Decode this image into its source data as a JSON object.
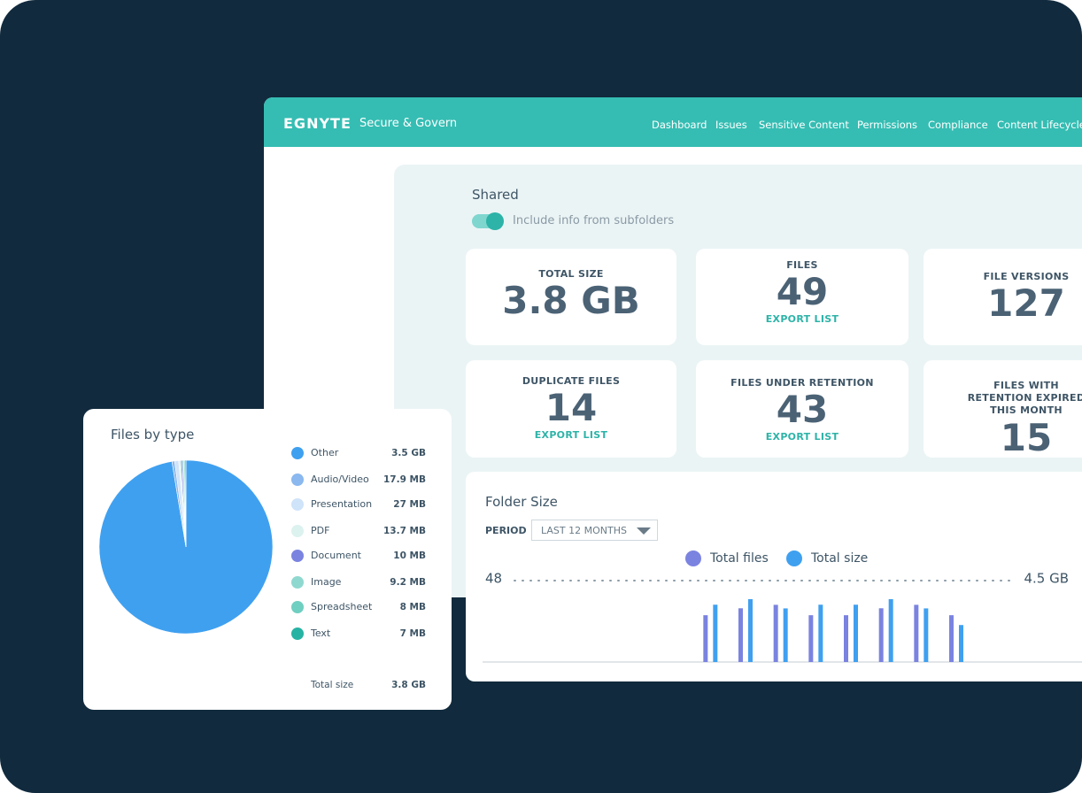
{
  "header": {
    "logo": "EGNYTE",
    "product": "Secure & Govern",
    "nav": [
      "Dashboard",
      "Issues",
      "Sensitive Content",
      "Permissions",
      "Compliance",
      "Content Lifecycle"
    ]
  },
  "panel": {
    "title": "Shared",
    "toggle_label": "Include info from subfolders"
  },
  "stats": [
    {
      "label": "TOTAL SIZE",
      "value": "3.8 GB"
    },
    {
      "label": "FILES",
      "value": 49,
      "link": "EXPORT LIST"
    },
    {
      "label": "FILE VERSIONS",
      "value": 127
    },
    {
      "label": "DUPLICATE FILES",
      "value": 14,
      "link": "EXPORT LIST"
    },
    {
      "label": "FILES UNDER RETENTION",
      "value": 43,
      "link": "EXPORT LIST"
    },
    {
      "label": "FILES WITH RETENTION EXPIRED THIS MONTH",
      "value": 15
    }
  ],
  "chart_data": [
    {
      "type": "pie",
      "title": "Files by type",
      "categories": [
        "Other",
        "Audio/Video",
        "Presentation",
        "PDF",
        "Document",
        "Image",
        "Spreadsheet",
        "Text"
      ],
      "values": [
        3500,
        17.9,
        27,
        13.7,
        10,
        9.2,
        8,
        7
      ],
      "value_labels": [
        "3.5 GB",
        "17.9 MB",
        "27 MB",
        "13.7 MB",
        "10 MB",
        "9.2 MB",
        "8 MB",
        "7 MB"
      ],
      "colors": [
        "#3fa0f0",
        "#8ab8ef",
        "#cfe3f9",
        "#dcf2ef",
        "#7b83e0",
        "#8fd8d0",
        "#6fcfc0",
        "#26b3a3"
      ],
      "total_label": "Total size",
      "total": "3.8 GB"
    },
    {
      "type": "bar",
      "title": "Folder Size",
      "period_label": "PERIOD",
      "period": "LAST 12 MONTHS",
      "categories": [
        null,
        null,
        null,
        null,
        null,
        null,
        null,
        null,
        null,
        null,
        null,
        null,
        null,
        null,
        null
      ],
      "series": [
        {
          "name": "Total files",
          "color": "#7b83e0",
          "values": [
            null,
            null,
            null,
            null,
            null,
            null,
            27,
            31,
            33,
            27,
            27,
            31,
            33,
            27,
            null
          ]
        },
        {
          "name": "Total size",
          "color": "#3fa0f0",
          "axis": "y2",
          "values": [
            null,
            null,
            null,
            null,
            null,
            null,
            3.1,
            3.4,
            2.9,
            3.1,
            3.1,
            3.4,
            2.9,
            2.0,
            null
          ]
        }
      ],
      "ylim": [
        0,
        48
      ],
      "yticks": [
        48
      ],
      "y2lim": [
        0,
        4.5
      ],
      "y2ticks": [
        {
          "value": 4.5,
          "label": "4.5 GB"
        }
      ]
    }
  ]
}
